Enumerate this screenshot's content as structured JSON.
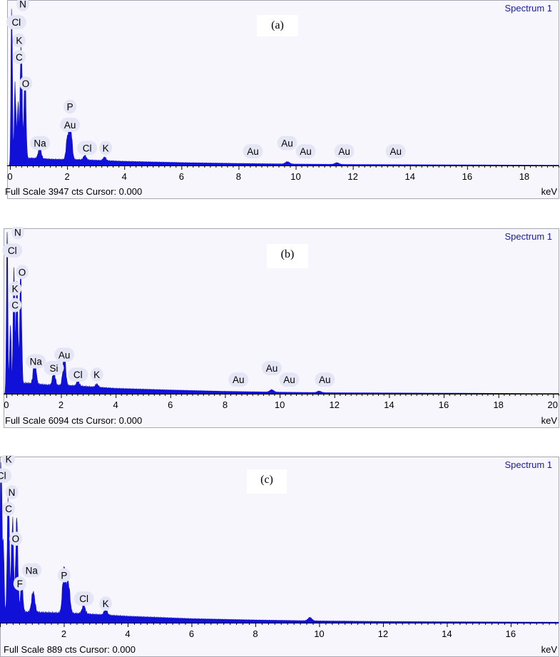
{
  "colors": {
    "spectrum": "#1010d8",
    "spectrum_label": "#1a1aa8",
    "peak_label_bg": "#e4e6f6",
    "plot_bg": "#f6f6fc"
  },
  "chart_data": [
    {
      "type": "line",
      "panel_label": "(a)",
      "spectrum_name": "Spectrum 1",
      "x_unit": "keV",
      "footer": "Full Scale 3947 cts Cursor: 0.000",
      "xlim": [
        -0.1,
        19.2
      ],
      "ylim": [
        0,
        3947
      ],
      "x_ticks": [
        "0",
        "2",
        "4",
        "6",
        "8",
        "10",
        "12",
        "14",
        "16",
        "18"
      ],
      "peak_labels": [
        {
          "text": "N",
          "x": 0.45,
          "level": 0.95
        },
        {
          "text": "Cl",
          "x": 0.22,
          "level": 0.84
        },
        {
          "text": "K",
          "x": 0.32,
          "level": 0.73
        },
        {
          "text": "C",
          "x": 0.32,
          "level": 0.63
        },
        {
          "text": "O",
          "x": 0.55,
          "level": 0.47
        },
        {
          "text": "P",
          "x": 2.1,
          "level": 0.33
        },
        {
          "text": "Au",
          "x": 2.1,
          "level": 0.22
        },
        {
          "text": "Na",
          "x": 1.05,
          "level": 0.11
        },
        {
          "text": "Cl",
          "x": 2.7,
          "level": 0.08
        },
        {
          "text": "K",
          "x": 3.35,
          "level": 0.08
        },
        {
          "text": "Au",
          "x": 8.5,
          "level": 0.06
        },
        {
          "text": "Au",
          "x": 9.7,
          "level": 0.11
        },
        {
          "text": "Au",
          "x": 10.35,
          "level": 0.06
        },
        {
          "text": "Au",
          "x": 11.7,
          "level": 0.06
        },
        {
          "text": "Au",
          "x": 13.5,
          "level": 0.06
        }
      ],
      "peaks": [
        {
          "x": 0.06,
          "y": 3947,
          "w": 0.025
        },
        {
          "x": 0.18,
          "y": 1900,
          "w": 0.03
        },
        {
          "x": 0.28,
          "y": 1400,
          "w": 0.03
        },
        {
          "x": 0.39,
          "y": 2900,
          "w": 0.035
        },
        {
          "x": 0.525,
          "y": 2050,
          "w": 0.035
        },
        {
          "x": 1.04,
          "y": 280,
          "w": 0.05
        },
        {
          "x": 2.01,
          "y": 520,
          "w": 0.045
        },
        {
          "x": 2.12,
          "y": 780,
          "w": 0.05
        },
        {
          "x": 2.62,
          "y": 110,
          "w": 0.05
        },
        {
          "x": 3.31,
          "y": 85,
          "w": 0.05
        },
        {
          "x": 9.71,
          "y": 55,
          "w": 0.07
        },
        {
          "x": 11.44,
          "y": 40,
          "w": 0.07
        }
      ],
      "background": [
        [
          0.7,
          180
        ],
        [
          1.5,
          150
        ],
        [
          2.5,
          140
        ],
        [
          4,
          100
        ],
        [
          6,
          70
        ],
        [
          8,
          50
        ],
        [
          10,
          35
        ],
        [
          12,
          25
        ],
        [
          19,
          8
        ]
      ]
    },
    {
      "type": "line",
      "panel_label": "(b)",
      "spectrum_name": "Spectrum 1",
      "x_unit": "keV",
      "footer": "Full Scale 6094 cts Cursor: 0.000",
      "xlim": [
        -0.1,
        20.2
      ],
      "ylim": [
        0,
        6094
      ],
      "x_ticks": [
        "0",
        "2",
        "4",
        "6",
        "8",
        "10",
        "12",
        "14",
        "16",
        "18",
        "20"
      ],
      "peak_labels": [
        {
          "text": "N",
          "x": 0.42,
          "level": 0.95
        },
        {
          "text": "Cl",
          "x": 0.22,
          "level": 0.84
        },
        {
          "text": "O",
          "x": 0.58,
          "level": 0.71
        },
        {
          "text": "K",
          "x": 0.32,
          "level": 0.61
        },
        {
          "text": "C",
          "x": 0.32,
          "level": 0.51
        },
        {
          "text": "Na",
          "x": 1.08,
          "level": 0.17
        },
        {
          "text": "Si",
          "x": 1.74,
          "level": 0.13
        },
        {
          "text": "Au",
          "x": 2.12,
          "level": 0.21
        },
        {
          "text": "Cl",
          "x": 2.62,
          "level": 0.09
        },
        {
          "text": "K",
          "x": 3.31,
          "level": 0.09
        },
        {
          "text": "Au",
          "x": 8.49,
          "level": 0.06
        },
        {
          "text": "Au",
          "x": 9.71,
          "level": 0.13
        },
        {
          "text": "Au",
          "x": 10.35,
          "level": 0.06
        },
        {
          "text": "Au",
          "x": 11.65,
          "level": 0.06
        }
      ],
      "peaks": [
        {
          "x": 0.03,
          "y": 6094,
          "w": 0.025
        },
        {
          "x": 0.15,
          "y": 2500,
          "w": 0.03
        },
        {
          "x": 0.28,
          "y": 4600,
          "w": 0.03
        },
        {
          "x": 0.39,
          "y": 4000,
          "w": 0.035
        },
        {
          "x": 0.525,
          "y": 4200,
          "w": 0.035
        },
        {
          "x": 1.04,
          "y": 950,
          "w": 0.05
        },
        {
          "x": 1.74,
          "y": 500,
          "w": 0.05
        },
        {
          "x": 2.12,
          "y": 1150,
          "w": 0.05
        },
        {
          "x": 2.62,
          "y": 180,
          "w": 0.05
        },
        {
          "x": 3.31,
          "y": 120,
          "w": 0.05
        },
        {
          "x": 9.71,
          "y": 90,
          "w": 0.07
        },
        {
          "x": 11.44,
          "y": 55,
          "w": 0.07
        }
      ],
      "background": [
        [
          0.7,
          400
        ],
        [
          1.5,
          330
        ],
        [
          2.5,
          300
        ],
        [
          4,
          200
        ],
        [
          6,
          140
        ],
        [
          8,
          90
        ],
        [
          10,
          60
        ],
        [
          12,
          40
        ],
        [
          20,
          10
        ]
      ]
    },
    {
      "type": "line",
      "panel_label": "(c)",
      "spectrum_name": "Spectrum 1",
      "x_unit": "keV",
      "footer": "Full Scale 889 cts Cursor: 0.000",
      "xlim": [
        0,
        17.5
      ],
      "ylim": [
        0,
        889
      ],
      "x_ticks": [
        "2",
        "4",
        "6",
        "8",
        "10",
        "12",
        "14",
        "16"
      ],
      "peak_labels": [
        {
          "text": "K",
          "x": 0.27,
          "level": 0.96
        },
        {
          "text": "Cl",
          "x": 0.05,
          "level": 0.86
        },
        {
          "text": "N",
          "x": 0.37,
          "level": 0.76
        },
        {
          "text": "C",
          "x": 0.27,
          "level": 0.66
        },
        {
          "text": "O",
          "x": 0.49,
          "level": 0.48
        },
        {
          "text": "Na",
          "x": 0.99,
          "level": 0.29
        },
        {
          "text": "F",
          "x": 0.62,
          "level": 0.21
        },
        {
          "text": "P",
          "x": 2.01,
          "level": 0.26
        },
        {
          "text": "Cl",
          "x": 2.63,
          "level": 0.12
        },
        {
          "text": "K",
          "x": 3.31,
          "level": 0.09
        }
      ],
      "peaks": [
        {
          "x": 0.03,
          "y": 889,
          "w": 0.025
        },
        {
          "x": 0.1,
          "y": 420,
          "w": 0.03
        },
        {
          "x": 0.26,
          "y": 650,
          "w": 0.035
        },
        {
          "x": 0.39,
          "y": 520,
          "w": 0.035
        },
        {
          "x": 0.525,
          "y": 510,
          "w": 0.035
        },
        {
          "x": 0.68,
          "y": 170,
          "w": 0.035
        },
        {
          "x": 1.04,
          "y": 110,
          "w": 0.05
        },
        {
          "x": 2.01,
          "y": 240,
          "w": 0.05
        },
        {
          "x": 2.14,
          "y": 160,
          "w": 0.05
        },
        {
          "x": 2.62,
          "y": 45,
          "w": 0.05
        },
        {
          "x": 3.31,
          "y": 30,
          "w": 0.05
        },
        {
          "x": 9.71,
          "y": 18,
          "w": 0.06
        }
      ],
      "background": [
        [
          0.6,
          60
        ],
        [
          1.5,
          55
        ],
        [
          2.5,
          50
        ],
        [
          4,
          35
        ],
        [
          6,
          22
        ],
        [
          8,
          15
        ],
        [
          10,
          10
        ],
        [
          12,
          7
        ],
        [
          17.5,
          3
        ]
      ]
    }
  ]
}
